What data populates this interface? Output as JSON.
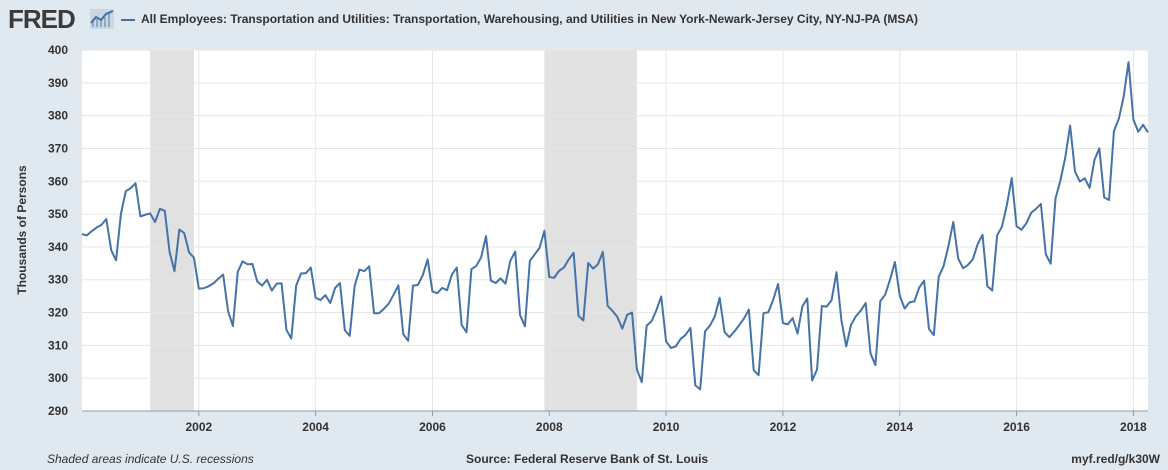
{
  "header": {
    "logo": "FRED",
    "series_title": "All Employees: Transportation and Utilities: Transportation, Warehousing, and Utilities in New York-Newark-Jersey City, NY-NJ-PA (MSA)"
  },
  "footer": {
    "note": "Shaded areas indicate U.S. recessions",
    "source": "Source: Federal Reserve Bank of St. Louis",
    "link": "myf.red/g/k30W"
  },
  "colors": {
    "line": "#4572a7",
    "recession": "#e1e1e1",
    "grid": "#e6e6e6",
    "plot_background": "#ffffff",
    "page_background": "#e1e9f0"
  },
  "chart_data": {
    "type": "line",
    "ylabel": "Thousands of Persons",
    "xlabel": "",
    "ylim": [
      290,
      400
    ],
    "yticks": [
      290,
      300,
      310,
      320,
      330,
      340,
      350,
      360,
      370,
      380,
      390,
      400
    ],
    "xlim": [
      "2000-01",
      "2018-04"
    ],
    "xticks": [
      "2002",
      "2004",
      "2006",
      "2008",
      "2010",
      "2012",
      "2014",
      "2016",
      "2018"
    ],
    "grid": true,
    "recessions": [
      {
        "start": "2001-03",
        "end": "2001-11"
      },
      {
        "start": "2007-12",
        "end": "2009-06"
      }
    ],
    "series": [
      {
        "start": "2000-01",
        "frequency": "monthly",
        "values": [
          343.9,
          343.5,
          344.8,
          345.9,
          346.7,
          348.5,
          339.0,
          335.9,
          350.1,
          357.0,
          357.9,
          359.4,
          349.3,
          349.8,
          350.2,
          347.6,
          351.6,
          351.0,
          338.4,
          332.6,
          345.3,
          344.2,
          338.3,
          336.7,
          327.3,
          327.4,
          328.0,
          328.9,
          330.3,
          331.6,
          320.5,
          315.9,
          332.4,
          335.6,
          334.7,
          334.8,
          329.5,
          328.2,
          330.0,
          326.7,
          328.8,
          328.9,
          314.7,
          312.1,
          328.2,
          331.9,
          332.0,
          333.7,
          324.5,
          323.8,
          325.3,
          322.9,
          327.5,
          329.0,
          314.6,
          312.9,
          328.0,
          333.1,
          332.6,
          334.1,
          319.8,
          319.8,
          321.1,
          322.7,
          325.4,
          328.3,
          313.4,
          311.4,
          328.2,
          328.4,
          331.3,
          336.2,
          326.4,
          325.9,
          327.5,
          326.8,
          331.6,
          333.7,
          316.2,
          314.0,
          333.2,
          334.2,
          336.8,
          343.3,
          329.7,
          329.0,
          330.4,
          328.8,
          335.8,
          338.6,
          319.2,
          315.8,
          335.7,
          337.7,
          339.7,
          344.9,
          330.8,
          330.6,
          332.7,
          333.7,
          336.2,
          338.2,
          319.0,
          317.6,
          335.1,
          333.4,
          334.7,
          338.5,
          322.0,
          320.5,
          318.6,
          315.1,
          319.3,
          320.0,
          302.6,
          298.8,
          316.0,
          317.3,
          320.7,
          324.9,
          311.2,
          309.2,
          309.7,
          312.0,
          313.2,
          315.3,
          297.8,
          296.6,
          314.3,
          316.0,
          318.8,
          324.5,
          314.1,
          312.5,
          314.2,
          316.1,
          318.2,
          320.9,
          302.4,
          300.9,
          319.8,
          320.1,
          323.9,
          328.7,
          316.8,
          316.4,
          318.3,
          313.6,
          321.9,
          324.3,
          299.3,
          302.6,
          322.0,
          321.8,
          323.8,
          332.3,
          317.8,
          309.7,
          316.3,
          318.9,
          320.6,
          322.9,
          307.5,
          304.0,
          323.5,
          325.4,
          330.0,
          335.4,
          325.2,
          321.2,
          323.1,
          323.4,
          327.6,
          329.7,
          315.0,
          313.1,
          330.9,
          334.1,
          340.3,
          347.6,
          336.5,
          333.5,
          334.5,
          336.2,
          340.8,
          343.7,
          328.0,
          326.7,
          343.5,
          346.2,
          352.7,
          361.0,
          346.3,
          345.2,
          347.2,
          350.4,
          351.6,
          353.1,
          337.8,
          334.9,
          354.8,
          360.2,
          367.2,
          377.0,
          363.0,
          359.9,
          360.9,
          358.0,
          366.5,
          370.0,
          355.1,
          354.3,
          375.3,
          379.0,
          385.8,
          396.3,
          378.8,
          375.1,
          377.2,
          374.9
        ]
      }
    ]
  }
}
